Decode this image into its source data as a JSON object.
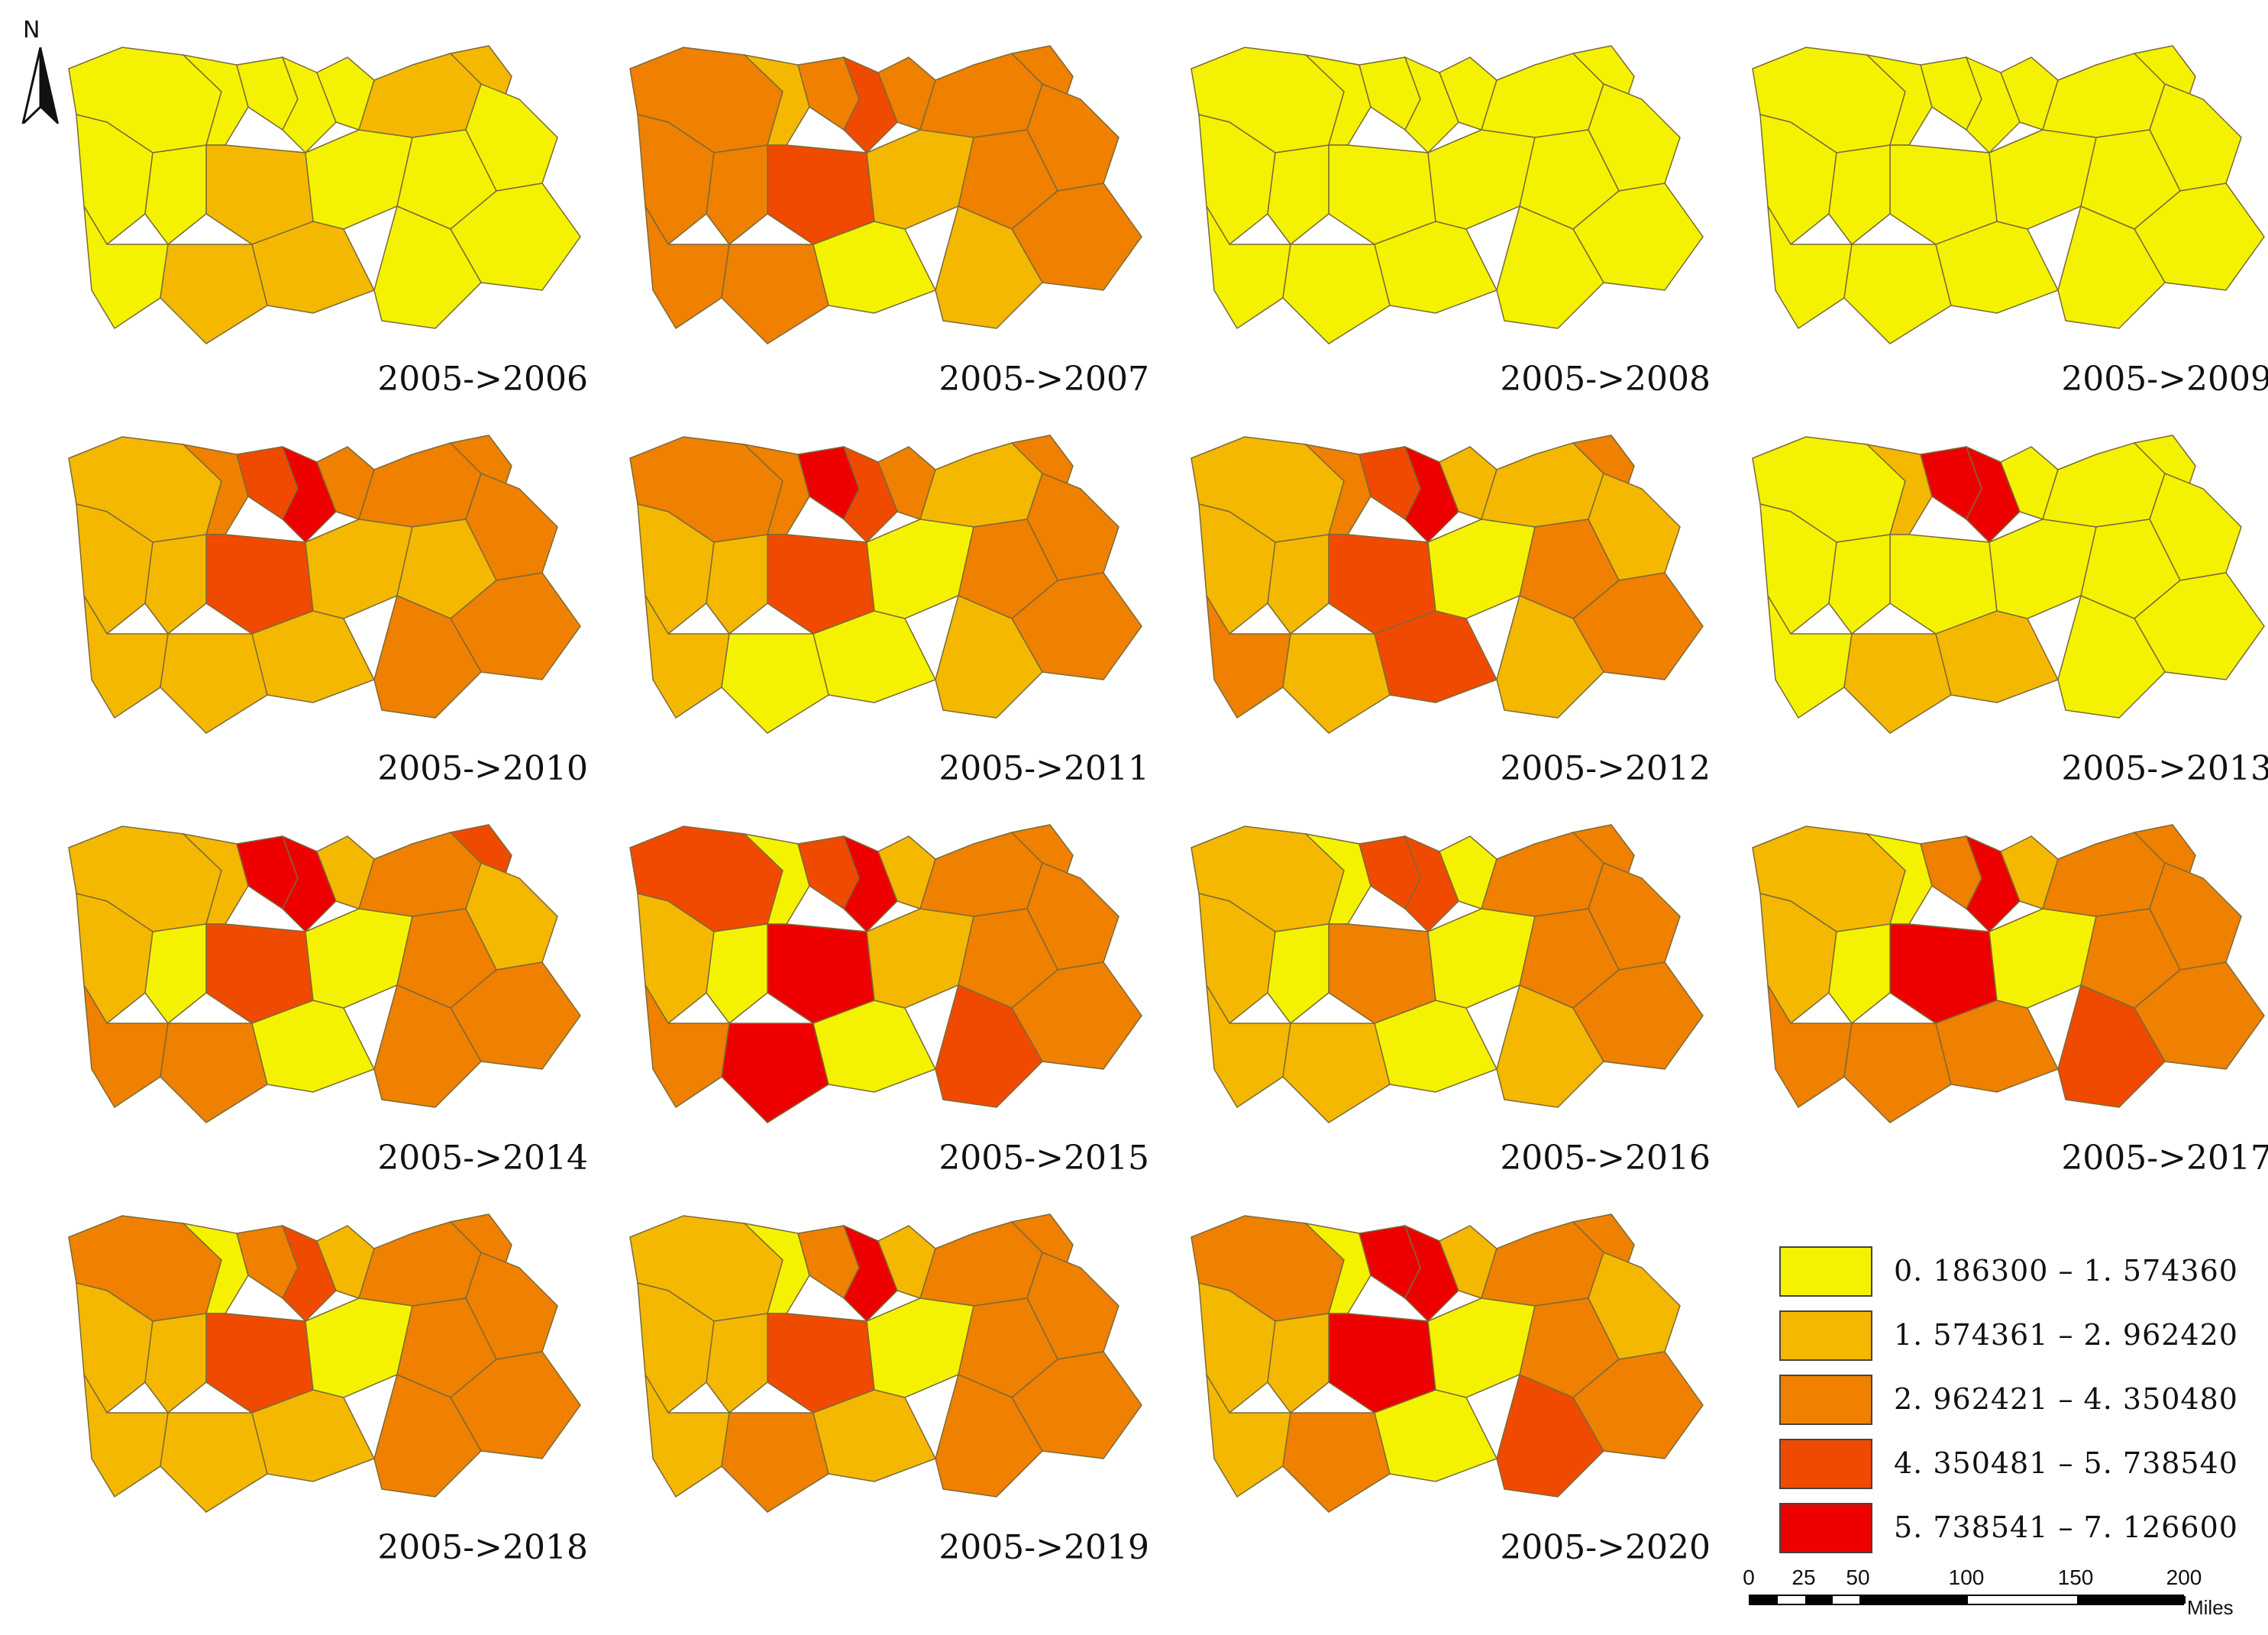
{
  "north_arrow": {
    "label": "N"
  },
  "region_colors": {
    "c1": "#f5f200",
    "c2": "#f5b800",
    "c3": "#f08000",
    "c4": "#f04a00",
    "c5": "#ee0000"
  },
  "panels": [
    {
      "period": "2005->2006",
      "colors": [
        "c1",
        "c1",
        "c1",
        "c1",
        "c1",
        "c2",
        "c2",
        "c1",
        "c1",
        "c2",
        "c1",
        "c1",
        "c1",
        "c1",
        "c1",
        "c2",
        "c2",
        "c1"
      ]
    },
    {
      "period": "2005->2007",
      "colors": [
        "c3",
        "c2",
        "c3",
        "c4",
        "c3",
        "c3",
        "c3",
        "c3",
        "c3",
        "c4",
        "c3",
        "c2",
        "c3",
        "c3",
        "c3",
        "c3",
        "c1",
        "c2"
      ]
    },
    {
      "period": "2005->2008",
      "colors": [
        "c1",
        "c1",
        "c1",
        "c1",
        "c1",
        "c1",
        "c1",
        "c1",
        "c1",
        "c1",
        "c1",
        "c1",
        "c1",
        "c1",
        "c1",
        "c1",
        "c1",
        "c1"
      ]
    },
    {
      "period": "2005->2009",
      "colors": [
        "c1",
        "c1",
        "c1",
        "c1",
        "c1",
        "c1",
        "c1",
        "c1",
        "c1",
        "c1",
        "c1",
        "c1",
        "c1",
        "c1",
        "c1",
        "c1",
        "c1",
        "c1"
      ]
    },
    {
      "period": "2005->2010",
      "colors": [
        "c2",
        "c3",
        "c4",
        "c5",
        "c3",
        "c3",
        "c3",
        "c3",
        "c2",
        "c4",
        "c2",
        "c2",
        "c2",
        "c3",
        "c2",
        "c2",
        "c2",
        "c3"
      ]
    },
    {
      "period": "2005->2011",
      "colors": [
        "c3",
        "c3",
        "c5",
        "c4",
        "c3",
        "c2",
        "c3",
        "c3",
        "c2",
        "c4",
        "c2",
        "c1",
        "c3",
        "c3",
        "c2",
        "c1",
        "c1",
        "c2"
      ]
    },
    {
      "period": "2005->2012",
      "colors": [
        "c2",
        "c3",
        "c4",
        "c5",
        "c2",
        "c2",
        "c3",
        "c2",
        "c2",
        "c4",
        "c2",
        "c1",
        "c3",
        "c3",
        "c3",
        "c2",
        "c4",
        "c2"
      ]
    },
    {
      "period": "2005->2013",
      "colors": [
        "c1",
        "c2",
        "c5",
        "c5",
        "c1",
        "c1",
        "c1",
        "c1",
        "c1",
        "c1",
        "c1",
        "c1",
        "c1",
        "c1",
        "c1",
        "c2",
        "c2",
        "c1"
      ]
    },
    {
      "period": "2005->2014",
      "colors": [
        "c2",
        "c2",
        "c5",
        "c5",
        "c2",
        "c3",
        "c4",
        "c2",
        "c2",
        "c4",
        "c1",
        "c1",
        "c3",
        "c3",
        "c3",
        "c3",
        "c1",
        "c3"
      ]
    },
    {
      "period": "2005->2015",
      "colors": [
        "c4",
        "c1",
        "c4",
        "c5",
        "c2",
        "c3",
        "c3",
        "c3",
        "c2",
        "c5",
        "c1",
        "c2",
        "c3",
        "c3",
        "c3",
        "c5",
        "c1",
        "c4"
      ]
    },
    {
      "period": "2005->2016",
      "colors": [
        "c2",
        "c1",
        "c4",
        "c4",
        "c1",
        "c3",
        "c3",
        "c3",
        "c2",
        "c3",
        "c1",
        "c1",
        "c3",
        "c3",
        "c2",
        "c2",
        "c1",
        "c2"
      ]
    },
    {
      "period": "2005->2017",
      "colors": [
        "c2",
        "c1",
        "c3",
        "c5",
        "c2",
        "c3",
        "c3",
        "c3",
        "c2",
        "c5",
        "c1",
        "c1",
        "c3",
        "c3",
        "c3",
        "c3",
        "c3",
        "c4"
      ]
    },
    {
      "period": "2005->2018",
      "colors": [
        "c3",
        "c1",
        "c3",
        "c4",
        "c2",
        "c3",
        "c3",
        "c3",
        "c2",
        "c4",
        "c2",
        "c1",
        "c3",
        "c3",
        "c2",
        "c2",
        "c2",
        "c3"
      ]
    },
    {
      "period": "2005->2019",
      "colors": [
        "c2",
        "c1",
        "c3",
        "c5",
        "c2",
        "c3",
        "c3",
        "c3",
        "c2",
        "c4",
        "c2",
        "c1",
        "c3",
        "c3",
        "c2",
        "c3",
        "c2",
        "c3"
      ]
    },
    {
      "period": "2005->2020",
      "colors": [
        "c3",
        "c1",
        "c5",
        "c5",
        "c2",
        "c3",
        "c3",
        "c2",
        "c2",
        "c5",
        "c2",
        "c1",
        "c3",
        "c3",
        "c2",
        "c3",
        "c1",
        "c4"
      ]
    }
  ],
  "legend": {
    "items": [
      {
        "label": "0. 186300  –  1. 574360",
        "color": "#f5f200"
      },
      {
        "label": "1. 574361  –  2. 962420",
        "color": "#f5b800"
      },
      {
        "label": "2. 962421  –  4. 350480",
        "color": "#f08000"
      },
      {
        "label": "4. 350481  –  5. 738540",
        "color": "#f04a00"
      },
      {
        "label": "5. 738541  –  7. 126600",
        "color": "#ee0000"
      }
    ]
  },
  "scale_bar": {
    "ticks": [
      "0",
      "25",
      "50",
      "100",
      "150",
      "200"
    ],
    "unit": "Miles"
  }
}
